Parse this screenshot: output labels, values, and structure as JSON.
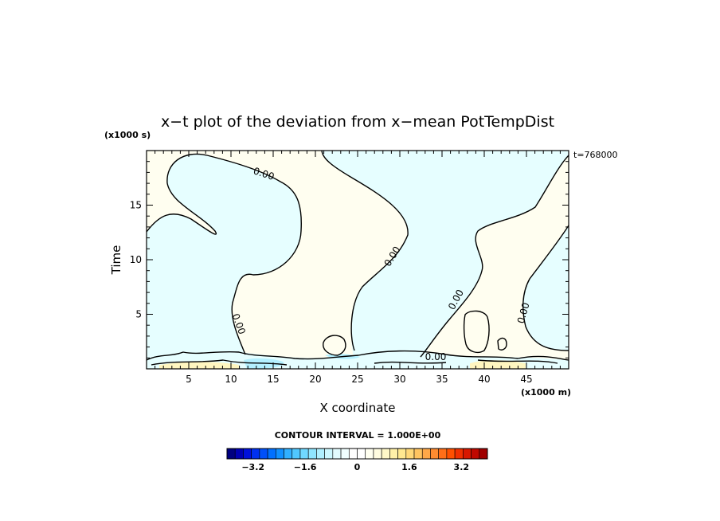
{
  "chart_data": {
    "type": "heatmap",
    "title": "x−t plot of the deviation from x−mean PotTempDist",
    "xlabel": "X coordinate",
    "ylabel": "Time",
    "x_unit": "(x1000 m)",
    "y_unit": "(x1000 s)",
    "time_stamp": "t=768000",
    "xlim": [
      0,
      50
    ],
    "ylim": [
      0,
      20
    ],
    "x_ticks": [
      5,
      10,
      15,
      20,
      25,
      30,
      35,
      40,
      45
    ],
    "y_ticks": [
      5,
      10,
      15
    ],
    "x_tick_labels": [
      "5",
      "10",
      "15",
      "20",
      "25",
      "30",
      "35",
      "40",
      "45"
    ],
    "y_tick_labels": [
      "5",
      "10",
      "15"
    ],
    "contour_interval_text": "CONTOUR INTERVAL = 1.000E+00",
    "contour_interval": 1.0,
    "contour_labels": [
      "0.00",
      "0.00",
      "0.00",
      "0.00",
      "0.00",
      "0.00"
    ],
    "colorbar": {
      "tick_values": [
        -3.2,
        -1.6,
        0,
        1.6,
        3.2
      ],
      "tick_labels": [
        "−3.2",
        "−1.6",
        "0",
        "1.6",
        "3.2"
      ],
      "range": [
        -4.0,
        4.0
      ],
      "colors": [
        "#000080",
        "#0000b4",
        "#0010dc",
        "#0030f0",
        "#0050fa",
        "#0070ff",
        "#1090ff",
        "#30b0ff",
        "#50c8ff",
        "#70d8ff",
        "#90e6ff",
        "#b0f0ff",
        "#cdf8ff",
        "#e3fcff",
        "#f0ffff",
        "#ffffff",
        "#ffffff",
        "#fffff0",
        "#fffce0",
        "#fff8c8",
        "#fff0a8",
        "#ffe890",
        "#ffd878",
        "#ffc460",
        "#ffa848",
        "#ff8c30",
        "#ff6e18",
        "#ff5000",
        "#f03000",
        "#d81800",
        "#c00800",
        "#a00000"
      ]
    },
    "regions": {
      "negative_color": "#e6feff",
      "positive_color": "#fffef0",
      "strong_negative_color": "#b4f0ff",
      "strong_positive_color": "#fff6c0"
    }
  }
}
